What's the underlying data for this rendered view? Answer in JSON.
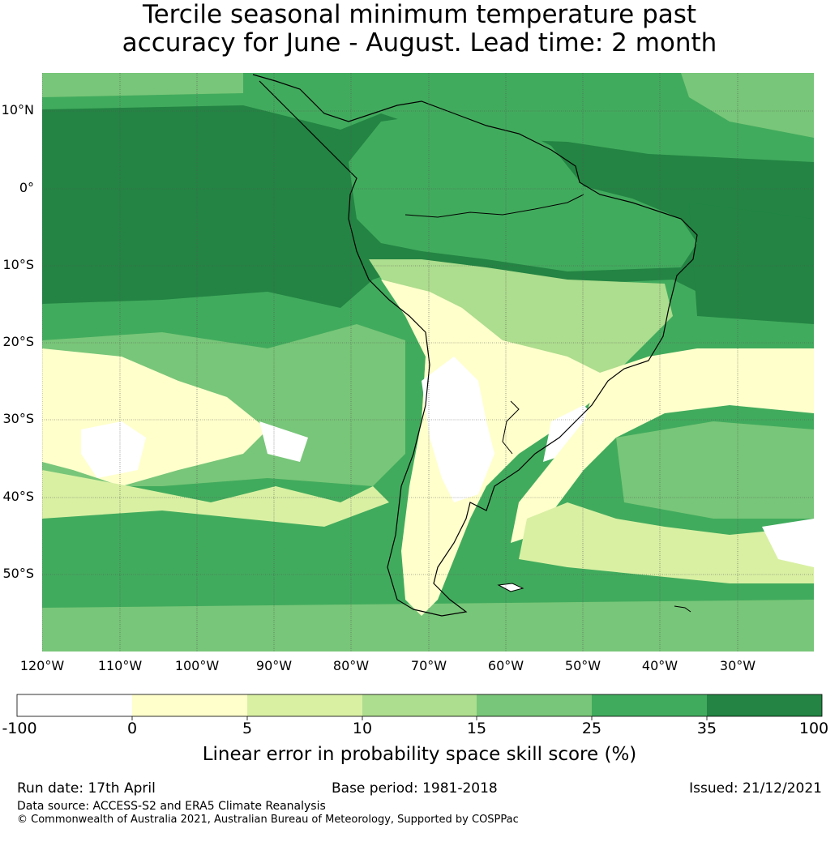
{
  "title": {
    "line1": "Tercile seasonal minimum temperature past",
    "line2": "accuracy for June - August. Lead time: 2 month"
  },
  "map": {
    "latitude_labels": [
      "10°N",
      "0°",
      "10°S",
      "20°S",
      "30°S",
      "40°S",
      "50°S"
    ],
    "longitude_labels": [
      "120°W",
      "110°W",
      "100°W",
      "90°W",
      "80°W",
      "70°W",
      "60°W",
      "50°W",
      "40°W",
      "30°W"
    ],
    "ocean_base_color": "#41ab5d",
    "gridlines": true
  },
  "colorbar": {
    "ticks": [
      "-100",
      "0",
      "5",
      "10",
      "15",
      "25",
      "35",
      "100"
    ],
    "colors": [
      "#ffffff",
      "#ffffcc",
      "#d9f0a3",
      "#addd8e",
      "#78c679",
      "#41ab5d",
      "#238443"
    ],
    "label": "Linear error in probability space skill score (%)"
  },
  "footer": {
    "run_date": "Run date: 17th April",
    "base_period": "Base period: 1981-2018",
    "issued": "Issued: 21/12/2021",
    "data_source": "Data source: ACCESS-S2 and ERA5 Climate Reanalysis",
    "copyright": "© Commonwealth of Australia 2021, Australian Bureau of Meteorology, Supported by COSPPac"
  }
}
